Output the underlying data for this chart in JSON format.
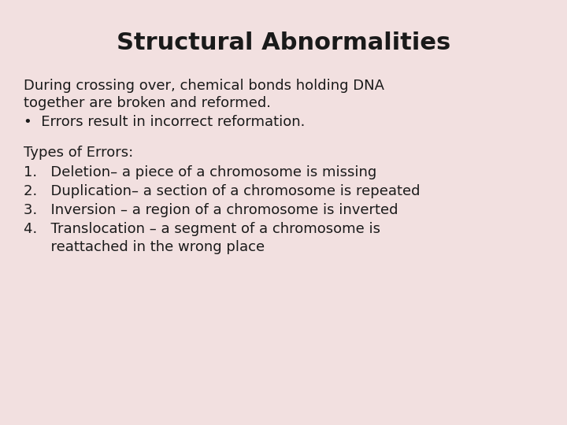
{
  "title": "Structural Abnormalities",
  "background_color": "#f2e0e0",
  "title_fontsize": 22,
  "title_fontweight": "bold",
  "title_color": "#1a1a1a",
  "body_fontsize": 13,
  "body_color": "#1a1a1a",
  "body_font": "DejaVu Sans",
  "intro_line1": "During crossing over, chemical bonds holding DNA",
  "intro_line2": "together are broken and reformed.",
  "bullet": "•  Errors result in incorrect reformation.",
  "types_header": "Types of Errors:",
  "items": [
    "1.   Deletion– a piece of a chromosome is missing",
    "2.   Duplication– a section of a chromosome is repeated",
    "3.   Inversion – a region of a chromosome is inverted",
    "4.   Translocation – a segment of a chromosome is\n      reattached in the wrong place"
  ]
}
